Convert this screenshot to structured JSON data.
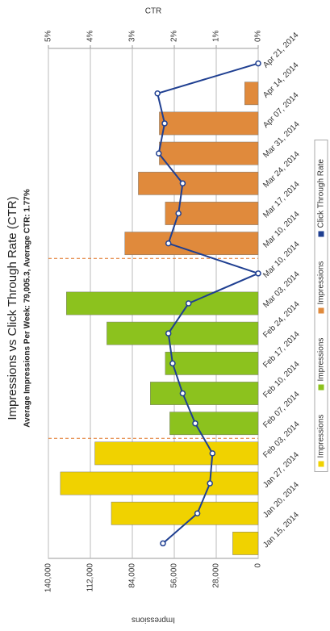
{
  "chart_data": {
    "type": "bar",
    "title": "Impressions vs Click Through Rate (CTR)",
    "subtitle": "Average Impressions Per Week: 79,005.3, Average CTR: 1.77%",
    "y_label": "Impressions",
    "y2_label": "CTR",
    "categories": [
      "Jan 15, 2014",
      "Jan 20, 2014",
      "Jan 27, 2014",
      "Feb 03, 2014",
      "Feb 07, 2014",
      "Feb 10, 2014",
      "Feb 17, 2014",
      "Feb 24, 2014",
      "Mar 03, 2014",
      "Mar 10, 2014",
      "Mar 10, 2014",
      "Mar 17, 2014",
      "Mar 24, 2014",
      "Mar 31, 2014",
      "Apr 07, 2014",
      "Apr 14, 2014",
      "Apr 21, 2014"
    ],
    "series": [
      {
        "name": "Impressions",
        "color": "#f0d200",
        "values": [
          17000,
          98000,
          132000,
          109000,
          null,
          null,
          null,
          null,
          null,
          null,
          null,
          null,
          null,
          null,
          null,
          null,
          null
        ]
      },
      {
        "name": "Impressions",
        "color": "#8cc21e",
        "values": [
          null,
          null,
          null,
          null,
          59000,
          72000,
          62000,
          101000,
          128000,
          0,
          null,
          null,
          null,
          null,
          null,
          null,
          null
        ]
      },
      {
        "name": "Impressions",
        "color": "#e08a3c",
        "values": [
          null,
          null,
          null,
          null,
          null,
          null,
          null,
          null,
          null,
          null,
          89000,
          62000,
          80000,
          66000,
          66000,
          9000,
          0
        ]
      },
      {
        "name": "Click Through Rate",
        "color": "#1f3f91",
        "axis": "y2",
        "values": [
          2.27,
          1.45,
          1.15,
          1.09,
          1.5,
          1.8,
          2.04,
          2.14,
          1.66,
          0,
          2.14,
          1.9,
          1.8,
          2.37,
          2.23,
          2.4,
          0
        ]
      }
    ],
    "ylim": [
      0,
      140000
    ],
    "yticks": [
      0,
      {
        "value": 28000,
        "label": "28,000"
      },
      {
        "value": 56000,
        "label": "56,000"
      },
      {
        "value": 84000,
        "label": "84,000"
      },
      {
        "value": 112000,
        "label": "112,000"
      },
      {
        "value": 140000,
        "label": "140,000"
      }
    ],
    "y2lim": [
      0,
      5
    ],
    "y2ticks": [
      {
        "value": 0,
        "label": "0%"
      },
      {
        "value": 1,
        "label": "1%"
      },
      {
        "value": 2,
        "label": "2%"
      },
      {
        "value": 3,
        "label": "3%"
      },
      {
        "value": 4,
        "label": "4%"
      },
      {
        "value": 5,
        "label": "5%"
      }
    ],
    "grid": true,
    "legend": "bottom"
  }
}
